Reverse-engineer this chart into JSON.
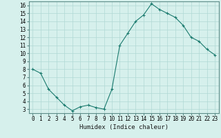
{
  "x": [
    0,
    1,
    2,
    3,
    4,
    5,
    6,
    7,
    8,
    9,
    10,
    11,
    12,
    13,
    14,
    15,
    16,
    17,
    18,
    19,
    20,
    21,
    22,
    23
  ],
  "y": [
    8.0,
    7.5,
    5.5,
    4.5,
    3.5,
    2.8,
    3.3,
    3.5,
    3.2,
    3.0,
    5.5,
    11.0,
    12.5,
    14.0,
    14.8,
    16.2,
    15.5,
    15.0,
    14.5,
    13.5,
    12.0,
    11.5,
    10.5,
    9.8
  ],
  "xlabel": "Humidex (Indice chaleur)",
  "xlim": [
    -0.5,
    23.5
  ],
  "ylim": [
    2.5,
    16.5
  ],
  "yticks": [
    3,
    4,
    5,
    6,
    7,
    8,
    9,
    10,
    11,
    12,
    13,
    14,
    15,
    16
  ],
  "xticks": [
    0,
    1,
    2,
    3,
    4,
    5,
    6,
    7,
    8,
    9,
    10,
    11,
    12,
    13,
    14,
    15,
    16,
    17,
    18,
    19,
    20,
    21,
    22,
    23
  ],
  "line_color": "#1a7a6e",
  "bg_color": "#d6f0ec",
  "grid_color": "#b0d8d4",
  "axes_color": "#5c8c88",
  "xlabel_fontsize": 6.5,
  "tick_fontsize": 5.5
}
